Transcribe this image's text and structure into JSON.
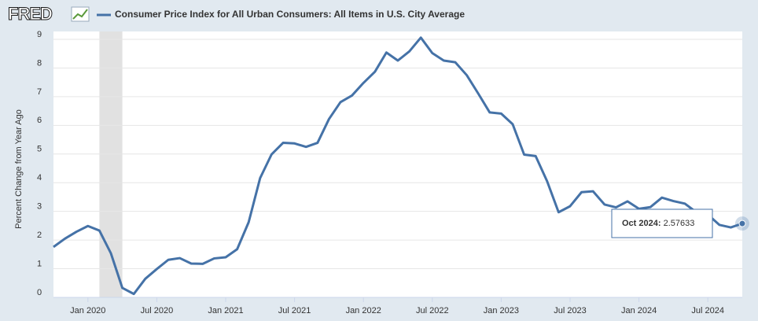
{
  "header": {
    "logo": "FRED"
  },
  "chart_data": {
    "type": "line",
    "title": "Consumer Price Index for All Urban Consumers: All Items in U.S. City Average",
    "y_label": "Percent Change from Year Ago",
    "x": [
      "2019-10",
      "2019-11",
      "2019-12",
      "2020-01",
      "2020-02",
      "2020-03",
      "2020-04",
      "2020-05",
      "2020-06",
      "2020-07",
      "2020-08",
      "2020-09",
      "2020-10",
      "2020-11",
      "2020-12",
      "2021-01",
      "2021-02",
      "2021-03",
      "2021-04",
      "2021-05",
      "2021-06",
      "2021-07",
      "2021-08",
      "2021-09",
      "2021-10",
      "2021-11",
      "2021-12",
      "2022-01",
      "2022-02",
      "2022-03",
      "2022-04",
      "2022-05",
      "2022-06",
      "2022-07",
      "2022-08",
      "2022-09",
      "2022-10",
      "2022-11",
      "2022-12",
      "2023-01",
      "2023-02",
      "2023-03",
      "2023-04",
      "2023-05",
      "2023-06",
      "2023-07",
      "2023-08",
      "2023-09",
      "2023-10",
      "2023-11",
      "2023-12",
      "2024-01",
      "2024-02",
      "2024-03",
      "2024-04",
      "2024-05",
      "2024-06",
      "2024-07",
      "2024-08",
      "2024-09",
      "2024-10"
    ],
    "series": [
      {
        "name": "Consumer Price Index for All Urban Consumers: All Items in U.S. City Average",
        "color": "#4572a7",
        "values": [
          1.76,
          2.05,
          2.29,
          2.49,
          2.33,
          1.54,
          0.33,
          0.12,
          0.65,
          0.99,
          1.31,
          1.37,
          1.18,
          1.17,
          1.36,
          1.4,
          1.68,
          2.62,
          4.16,
          4.99,
          5.39,
          5.37,
          5.25,
          5.39,
          6.22,
          6.81,
          7.04,
          7.48,
          7.87,
          8.54,
          8.26,
          8.58,
          9.06,
          8.52,
          8.26,
          8.2,
          7.75,
          7.11,
          6.45,
          6.41,
          6.04,
          4.98,
          4.93,
          4.05,
          2.97,
          3.18,
          3.67,
          3.7,
          3.24,
          3.14,
          3.35,
          3.09,
          3.15,
          3.48,
          3.36,
          3.27,
          2.97,
          2.89,
          2.53,
          2.44,
          2.57633
        ]
      }
    ],
    "xlim": [
      "2019-10",
      "2024-10"
    ],
    "xticks": [
      {
        "value": "2020-01",
        "label": "Jan 2020"
      },
      {
        "value": "2020-07",
        "label": "Jul 2020"
      },
      {
        "value": "2021-01",
        "label": "Jan 2021"
      },
      {
        "value": "2021-07",
        "label": "Jul 2021"
      },
      {
        "value": "2022-01",
        "label": "Jan 2022"
      },
      {
        "value": "2022-07",
        "label": "Jul 2022"
      },
      {
        "value": "2023-01",
        "label": "Jan 2023"
      },
      {
        "value": "2023-07",
        "label": "Jul 2023"
      },
      {
        "value": "2024-01",
        "label": "Jan 2024"
      },
      {
        "value": "2024-07",
        "label": "Jul 2024"
      }
    ],
    "ylim": [
      0,
      9
    ],
    "yticks": [
      0,
      1,
      2,
      3,
      4,
      5,
      6,
      7,
      8,
      9
    ],
    "grid": true,
    "shaded_periods": [
      {
        "start": "2020-02",
        "end": "2020-04"
      }
    ],
    "tooltip": {
      "label": "Oct 2024:",
      "value": 2.57633
    }
  }
}
